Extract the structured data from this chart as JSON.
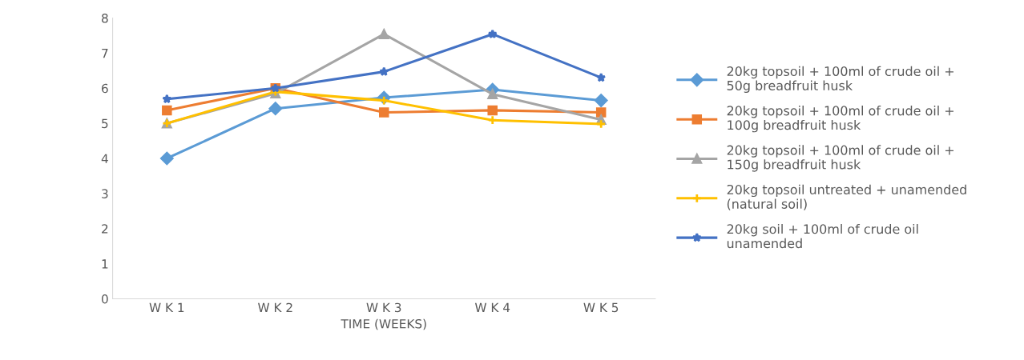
{
  "chart_data": {
    "type": "line",
    "xlabel": "TIME (WEEKS)",
    "categories": [
      "W K 1",
      "W K 2",
      "W K 3",
      "W K 4",
      "W K 5"
    ],
    "series": [
      {
        "name": "20kg topsoil + 100ml of crude oil +\n50g breadfruit husk",
        "color": "#5b9bd5",
        "marker": "diamond",
        "values": [
          4.0,
          5.42,
          5.73,
          5.96,
          5.65
        ]
      },
      {
        "name": "20kg topsoil + 100ml of crude oil +\n100g breadfruit husk",
        "color": "#ed7d31",
        "marker": "square",
        "values": [
          5.37,
          6.0,
          5.31,
          5.37,
          5.31
        ]
      },
      {
        "name": "20kg topsoil + 100ml of crude oil +\n150g breadfruit husk",
        "color": "#a5a5a5",
        "marker": "triangle",
        "values": [
          5.0,
          5.85,
          7.54,
          5.83,
          5.1
        ]
      },
      {
        "name": "20kg topsoil untreated + unamended\n(natural soil)",
        "color": "#ffc000",
        "marker": "cross",
        "values": [
          5.0,
          5.9,
          5.65,
          5.09,
          4.98
        ]
      },
      {
        "name": "20kg soil + 100ml of crude oil\nunamended",
        "color": "#4472c4",
        "marker": "star",
        "values": [
          5.69,
          6.0,
          6.47,
          7.54,
          6.3
        ]
      }
    ],
    "ylim": [
      0,
      8
    ],
    "yticks": [
      0,
      1,
      2,
      3,
      4,
      5,
      6,
      7,
      8
    ],
    "grid": false,
    "legend": "right"
  }
}
